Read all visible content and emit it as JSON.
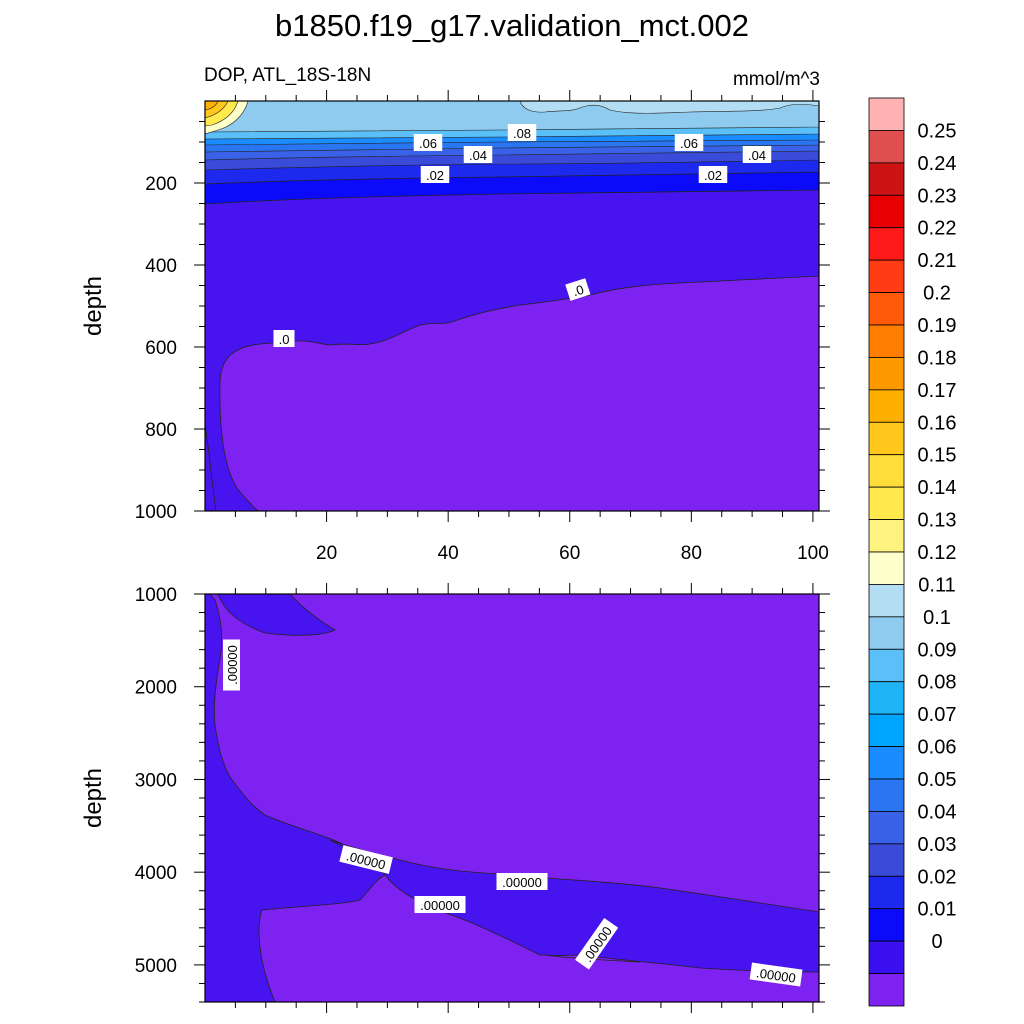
{
  "chart_data": {
    "type": "contour",
    "title": "b1850.f19_g17.validation_mct.002",
    "variable_label": "DOP, ATL_18S-18N",
    "units_label": "mmol/m^3",
    "panels": [
      {
        "ylabel": "depth",
        "ylim": [
          0,
          1000
        ],
        "y_ticks": [
          "200",
          "400",
          "600",
          "800",
          "1000"
        ],
        "xlim": [
          0,
          101
        ],
        "x_ticks": [
          "20",
          "40",
          "60",
          "80",
          "100"
        ],
        "contour_labels": [
          ".06",
          ".08",
          ".06",
          ".04",
          ".04",
          ".02",
          ".02",
          ".0",
          ".0"
        ]
      },
      {
        "ylabel": "depth",
        "ylim": [
          1000,
          5400
        ],
        "y_ticks": [
          "1000",
          "2000",
          "3000",
          "4000",
          "5000"
        ],
        "xlim": [
          0,
          101
        ],
        "contour_labels": [
          ".00000",
          ".00000",
          ".00000",
          ".00000",
          ".00000",
          ".00000"
        ]
      }
    ],
    "colorbar": {
      "labels": [
        "0.25",
        "0.24",
        "0.23",
        "0.22",
        "0.21",
        "0.2",
        "0.19",
        "0.18",
        "0.17",
        "0.16",
        "0.15",
        "0.14",
        "0.13",
        "0.12",
        "0.11",
        "0.1",
        "0.09",
        "0.08",
        "0.07",
        "0.06",
        "0.05",
        "0.04",
        "0.03",
        "0.02",
        "0.01",
        "0"
      ],
      "colors": [
        "#ffb2b2",
        "#e04f4f",
        "#cc1414",
        "#e60000",
        "#ff1a1a",
        "#ff3c14",
        "#ff5a0a",
        "#ff7d00",
        "#ff9900",
        "#ffaf00",
        "#ffc61c",
        "#ffdd3a",
        "#ffe94d",
        "#fff380",
        "#ffffcc",
        "#b3ddf2",
        "#8fcbef",
        "#5ac0f7",
        "#1fb4f5",
        "#00a5ff",
        "#1a8cff",
        "#2a75f2",
        "#3a62e8",
        "#3a4ad9",
        "#1e29ee",
        "#0b0bfa",
        "#3b10f0",
        "#7d22f0"
      ]
    }
  }
}
